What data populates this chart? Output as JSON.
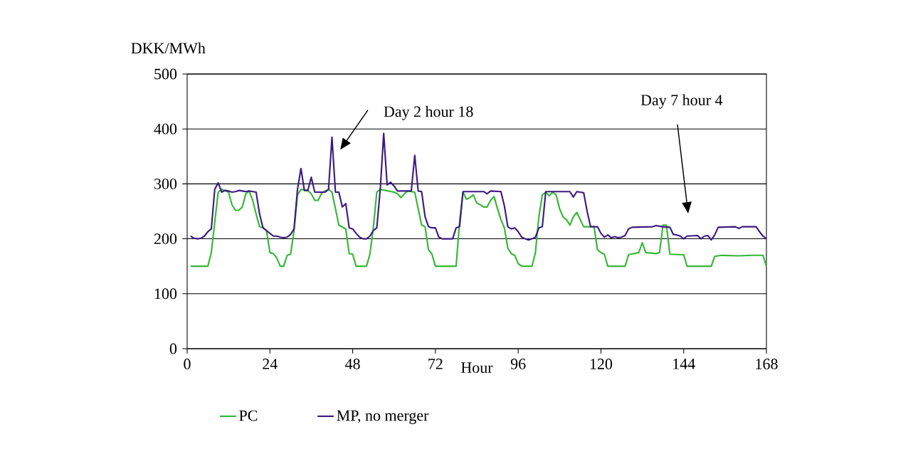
{
  "chart_data": {
    "type": "line",
    "xlabel": "Hour",
    "ylabel": "DKK/MWh",
    "xlim": [
      0,
      168
    ],
    "xticks": [
      0,
      24,
      48,
      72,
      96,
      120,
      144,
      168
    ],
    "ylim": [
      0,
      500
    ],
    "yticks": [
      0,
      100,
      200,
      300,
      400,
      500
    ],
    "grid": "y",
    "legend": "bottom",
    "line_style": "solid",
    "marker": "none",
    "annotations": [
      "Day 2 hour 18",
      "Day 7 hour 4"
    ],
    "series": [
      {
        "name": "PC",
        "color": "#33b833",
        "x": [
          1,
          6,
          7,
          8,
          9,
          10,
          12,
          13,
          14,
          15,
          16,
          17,
          18,
          19,
          20,
          21,
          22,
          23,
          24,
          25,
          26,
          27,
          28,
          29,
          30,
          31,
          32,
          33,
          35,
          36,
          37,
          38,
          39,
          40,
          41,
          42,
          43,
          44,
          46,
          47,
          48,
          49,
          52,
          53,
          54,
          55,
          56,
          60,
          61,
          62,
          63,
          64,
          66,
          67,
          68,
          69,
          70,
          71,
          72,
          78,
          79,
          80,
          81,
          82,
          83,
          84,
          85,
          86,
          87,
          88,
          89,
          90,
          91,
          92,
          93,
          94,
          95,
          96,
          97,
          100,
          101,
          102,
          103,
          104,
          105,
          106,
          107,
          108,
          109,
          110,
          111,
          112,
          113,
          114,
          115,
          118,
          119,
          120,
          121,
          122,
          127,
          128,
          131,
          132,
          133,
          136,
          137,
          138,
          139,
          140,
          144,
          145,
          152,
          153,
          155,
          160,
          164,
          167,
          168
        ],
        "values": [
          150,
          150,
          175,
          230,
          285,
          290,
          285,
          262,
          252,
          252,
          258,
          282,
          287,
          270,
          245,
          222,
          220,
          215,
          175,
          173,
          165,
          150,
          150,
          170,
          172,
          215,
          280,
          290,
          288,
          282,
          270,
          270,
          283,
          287,
          290,
          285,
          255,
          225,
          218,
          173,
          172,
          150,
          150,
          172,
          220,
          285,
          290,
          285,
          282,
          275,
          282,
          287,
          285,
          255,
          225,
          222,
          180,
          172,
          150,
          150,
          230,
          285,
          272,
          275,
          280,
          265,
          262,
          258,
          258,
          270,
          277,
          255,
          235,
          220,
          183,
          173,
          170,
          155,
          150,
          150,
          175,
          240,
          280,
          285,
          278,
          285,
          280,
          255,
          240,
          235,
          225,
          240,
          248,
          235,
          222,
          222,
          180,
          175,
          172,
          150,
          150,
          171,
          175,
          193,
          175,
          173,
          175,
          225,
          225,
          172,
          171,
          150,
          150,
          168,
          170,
          169,
          170,
          170,
          150
        ]
      },
      {
        "name": "MP, no merger",
        "color": "#3d1a82",
        "x": [
          1,
          2,
          3,
          4,
          5,
          6,
          7,
          8,
          9,
          10,
          11,
          12,
          13,
          14,
          15,
          16,
          17,
          18,
          19,
          20,
          21,
          22,
          23,
          24,
          25,
          26,
          27,
          28,
          29,
          30,
          31,
          32,
          33,
          34,
          35,
          36,
          37,
          40,
          41,
          42,
          43,
          44,
          45,
          46,
          47,
          48,
          49,
          50,
          51,
          52,
          53,
          54,
          55,
          56,
          57,
          58,
          59,
          60,
          61,
          65,
          66,
          67,
          68,
          69,
          70,
          71,
          72,
          73,
          74,
          77,
          78,
          79,
          80,
          86,
          87,
          88,
          91,
          92,
          93,
          94,
          95,
          96,
          97,
          98,
          99,
          100,
          101,
          102,
          103,
          104,
          111,
          112,
          113,
          115,
          116,
          117,
          119,
          120,
          121,
          122,
          123,
          124,
          125,
          126,
          127,
          128,
          129,
          135,
          136,
          137,
          138,
          140,
          141,
          142,
          143,
          144,
          145,
          148,
          149,
          150,
          151,
          152,
          153,
          154,
          159,
          160,
          161,
          164,
          165,
          166,
          167,
          168
        ],
        "values": [
          205,
          201,
          200,
          201,
          205,
          213,
          218,
          290,
          302,
          285,
          288,
          287,
          285,
          286,
          288,
          287,
          286,
          287,
          286,
          285,
          245,
          220,
          215,
          210,
          205,
          205,
          203,
          202,
          203,
          208,
          218,
          290,
          328,
          288,
          288,
          312,
          285,
          285,
          290,
          385,
          285,
          285,
          258,
          264,
          220,
          218,
          210,
          203,
          200,
          200,
          205,
          215,
          220,
          290,
          392,
          298,
          303,
          296,
          287,
          287,
          352,
          287,
          286,
          240,
          222,
          220,
          220,
          203,
          200,
          200,
          220,
          222,
          286,
          286,
          282,
          287,
          286,
          260,
          222,
          218,
          220,
          213,
          203,
          200,
          198,
          200,
          203,
          220,
          222,
          286,
          286,
          276,
          286,
          284,
          250,
          222,
          222,
          210,
          203,
          207,
          202,
          204,
          202,
          203,
          206,
          218,
          221,
          222,
          224,
          223,
          222,
          221,
          208,
          207,
          205,
          200,
          205,
          206,
          200,
          205,
          206,
          198,
          207,
          221,
          222,
          219,
          222,
          222,
          222,
          213,
          205,
          200
        ]
      }
    ]
  }
}
